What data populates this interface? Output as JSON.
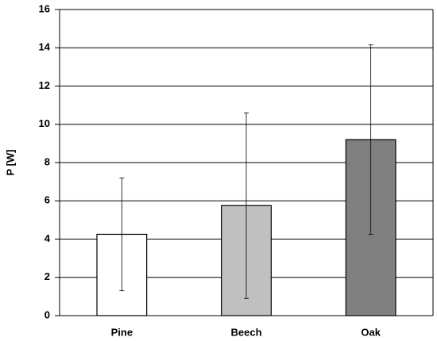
{
  "chart_data": {
    "type": "bar",
    "ylabel": "P [W]",
    "categories": [
      "Pine",
      "Beech",
      "Oak"
    ],
    "values": [
      4.25,
      5.75,
      9.2
    ],
    "errors": [
      2.95,
      4.85,
      4.95
    ],
    "colors": [
      "#ffffff",
      "#c0c0c0",
      "#808080"
    ],
    "ylim": [
      0,
      16
    ],
    "yticks": [
      0,
      2,
      4,
      6,
      8,
      10,
      12,
      14,
      16
    ],
    "grid": true
  }
}
